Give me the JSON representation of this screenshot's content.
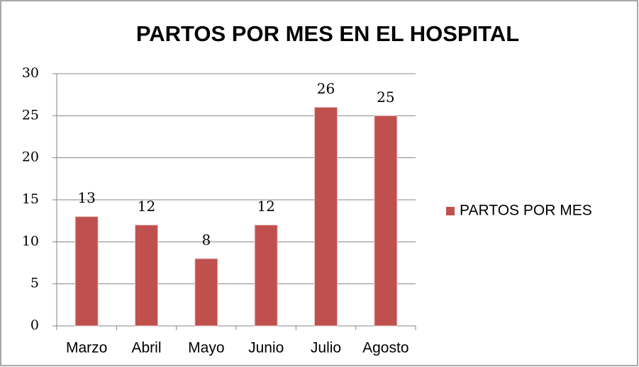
{
  "chart_data": {
    "type": "bar",
    "title": "PARTOS POR MES EN EL HOSPITAL",
    "categories": [
      "Marzo",
      "Abril",
      "Mayo",
      "Junio",
      "Julio",
      "Agosto"
    ],
    "series": [
      {
        "name": "PARTOS POR MES",
        "color": "#c0504d",
        "values": [
          13,
          12,
          8,
          12,
          26,
          25
        ]
      }
    ],
    "ylim": [
      0,
      30
    ],
    "yticks": [
      0,
      5,
      10,
      15,
      20,
      25,
      30
    ],
    "grid": true,
    "legend": "right"
  }
}
